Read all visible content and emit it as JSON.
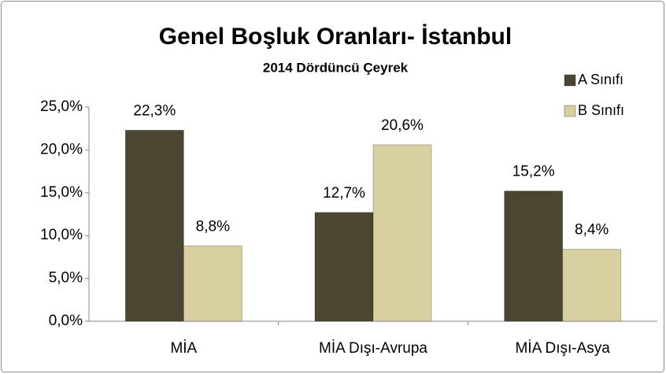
{
  "chart_data": {
    "type": "bar",
    "title": "Genel Boşluk Oranları- İstanbul",
    "subtitle": "2014 Dördüncü Çeyrek",
    "categories": [
      "MİA",
      "MİA Dışı-Avrupa",
      "MİA Dışı-Asya"
    ],
    "series": [
      {
        "name": "A Sınıfı",
        "color": "#4b4632",
        "values": [
          22.3,
          12.7,
          15.2
        ],
        "value_labels": [
          "22,3%",
          "12,7%",
          "15,2%"
        ]
      },
      {
        "name": "B Sınıfı",
        "color": "#d9d0a2",
        "values": [
          8.8,
          20.6,
          8.4
        ],
        "value_labels": [
          "8,8%",
          "20,6%",
          "8,4%"
        ]
      }
    ],
    "ylim": [
      0,
      25
    ],
    "yticks": [
      {
        "value": 0,
        "label": "0,0%"
      },
      {
        "value": 5,
        "label": "5,0%"
      },
      {
        "value": 10,
        "label": "10,0%"
      },
      {
        "value": 15,
        "label": "15,0%"
      },
      {
        "value": 20,
        "label": "20,0%"
      },
      {
        "value": 25,
        "label": "25,0%"
      }
    ],
    "grid": false,
    "legend": "top-right"
  }
}
